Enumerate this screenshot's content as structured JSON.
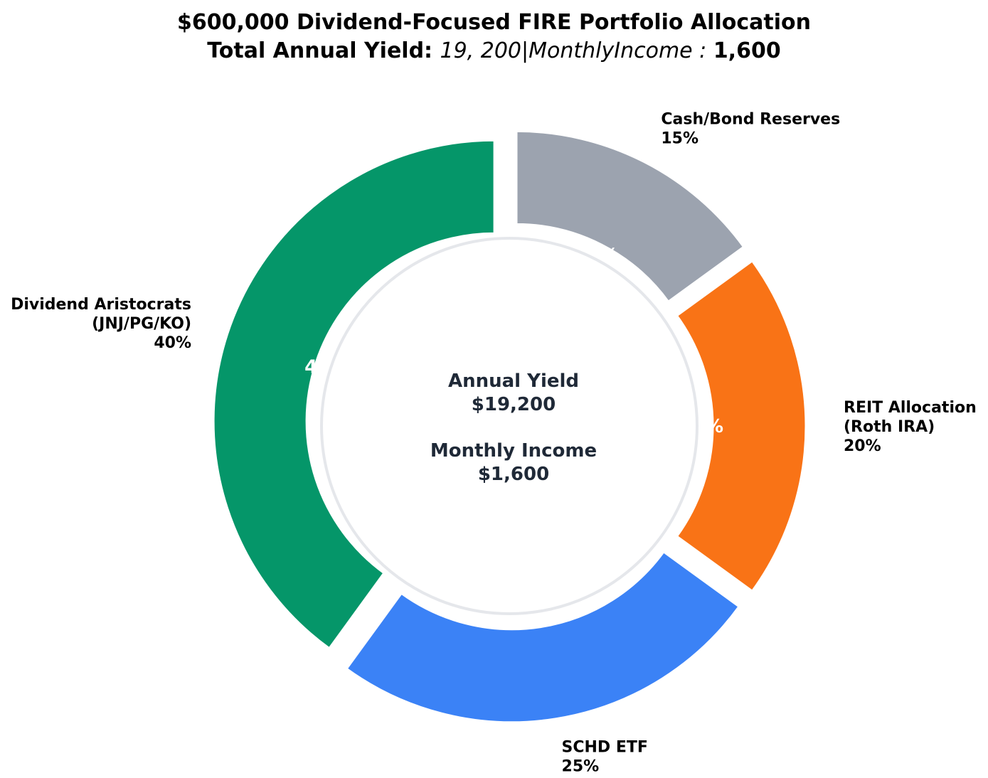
{
  "chart_data": {
    "type": "pie",
    "title": "$600,000 Dividend-Focused FIRE Portfolio Allocation",
    "subtitle": {
      "prefix": "Total Annual Yield: ",
      "math": "19, 200|MonthlyIncome : ",
      "suffix": "1,600"
    },
    "slices": [
      {
        "label_lines": [
          "Dividend Aristocrats",
          "(JNJ/PG/KO)",
          "40%"
        ],
        "value": 40,
        "pct_text": "40%",
        "color": "#059669"
      },
      {
        "label_lines": [
          "SCHD ETF",
          "25%"
        ],
        "value": 25,
        "pct_text": "25%",
        "color": "#3b82f6"
      },
      {
        "label_lines": [
          "REIT Allocation",
          "(Roth IRA)",
          "20%"
        ],
        "value": 20,
        "pct_text": "20%",
        "color": "#f97316"
      },
      {
        "label_lines": [
          "Cash/Bond Reserves",
          "15%"
        ],
        "value": 15,
        "pct_text": "15%",
        "color": "#9ca3af"
      }
    ],
    "center": {
      "annual_label": "Annual Yield",
      "annual_value": "$19,200",
      "monthly_label": "Monthly Income",
      "monthly_value": "$1,600"
    },
    "start": "top",
    "direction": "counterclockwise"
  }
}
